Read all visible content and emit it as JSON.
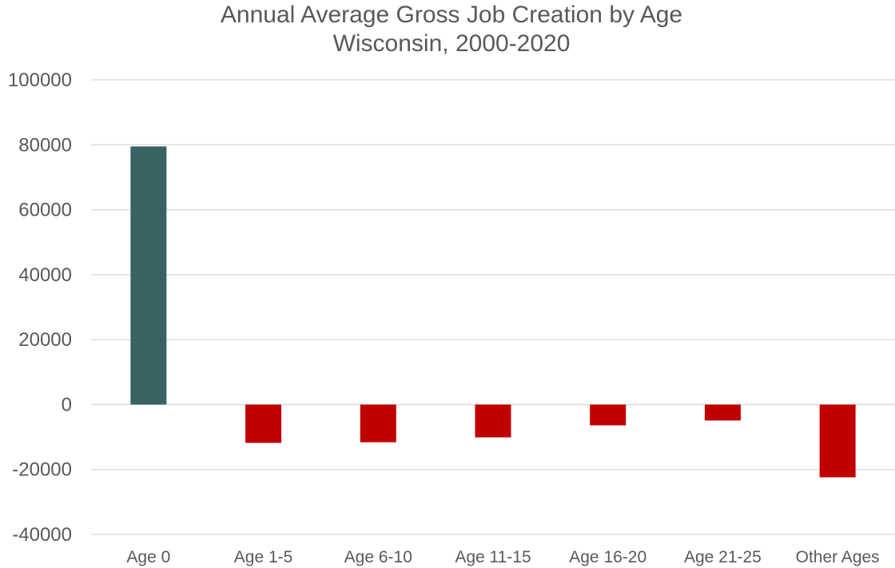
{
  "chart_data": {
    "type": "bar",
    "title": "Annual Average Gross Job Creation by Age",
    "subtitle": "Wisconsin, 2000-2020",
    "xlabel": "",
    "ylabel": "",
    "categories": [
      "Age 0",
      "Age 1-5",
      "Age 6-10",
      "Age 11-15",
      "Age 16-20",
      "Age 21-25",
      "Other Ages"
    ],
    "values": [
      79500,
      -11800,
      -11600,
      -10100,
      -6400,
      -4900,
      -22400
    ],
    "ylim": [
      -40000,
      100000
    ],
    "yticks": [
      "100000",
      "80000",
      "60000",
      "40000",
      "20000",
      "0",
      "-20000",
      "-40000"
    ],
    "grid": true,
    "legend": "none",
    "colors": {
      "positive": "#376363",
      "negative": "#c00000",
      "grid": "#d9d9d9",
      "text": "#595959"
    }
  }
}
